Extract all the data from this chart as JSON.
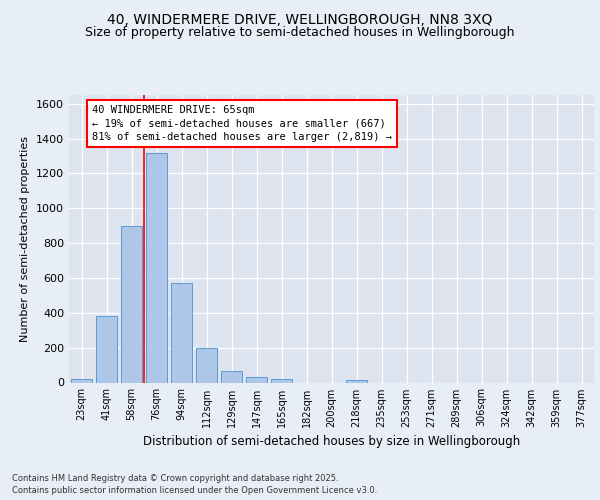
{
  "title": "40, WINDERMERE DRIVE, WELLINGBOROUGH, NN8 3XQ",
  "subtitle": "Size of property relative to semi-detached houses in Wellingborough",
  "xlabel": "Distribution of semi-detached houses by size in Wellingborough",
  "ylabel": "Number of semi-detached properties",
  "categories": [
    "23sqm",
    "41sqm",
    "58sqm",
    "76sqm",
    "94sqm",
    "112sqm",
    "129sqm",
    "147sqm",
    "165sqm",
    "182sqm",
    "200sqm",
    "218sqm",
    "235sqm",
    "253sqm",
    "271sqm",
    "289sqm",
    "306sqm",
    "324sqm",
    "342sqm",
    "359sqm",
    "377sqm"
  ],
  "values": [
    18,
    380,
    900,
    1320,
    570,
    200,
    65,
    30,
    18,
    0,
    0,
    15,
    0,
    0,
    0,
    0,
    0,
    0,
    0,
    0,
    0
  ],
  "bar_color": "#aec6e8",
  "bar_edge_color": "#5b9bd5",
  "background_color": "#dde4ef",
  "grid_color": "#ffffff",
  "red_line_x": 2.5,
  "annotation_text": "40 WINDERMERE DRIVE: 65sqm\n← 19% of semi-detached houses are smaller (667)\n81% of semi-detached houses are larger (2,819) →",
  "annotation_fontsize": 7.5,
  "ylim": [
    0,
    1650
  ],
  "yticks": [
    0,
    200,
    400,
    600,
    800,
    1000,
    1200,
    1400,
    1600
  ],
  "footer": "Contains HM Land Registry data © Crown copyright and database right 2025.\nContains public sector information licensed under the Open Government Licence v3.0.",
  "title_fontsize": 10,
  "subtitle_fontsize": 9,
  "ylabel_fontsize": 8,
  "xlabel_fontsize": 8.5,
  "footer_fontsize": 6,
  "ytick_fontsize": 8,
  "xtick_fontsize": 7
}
